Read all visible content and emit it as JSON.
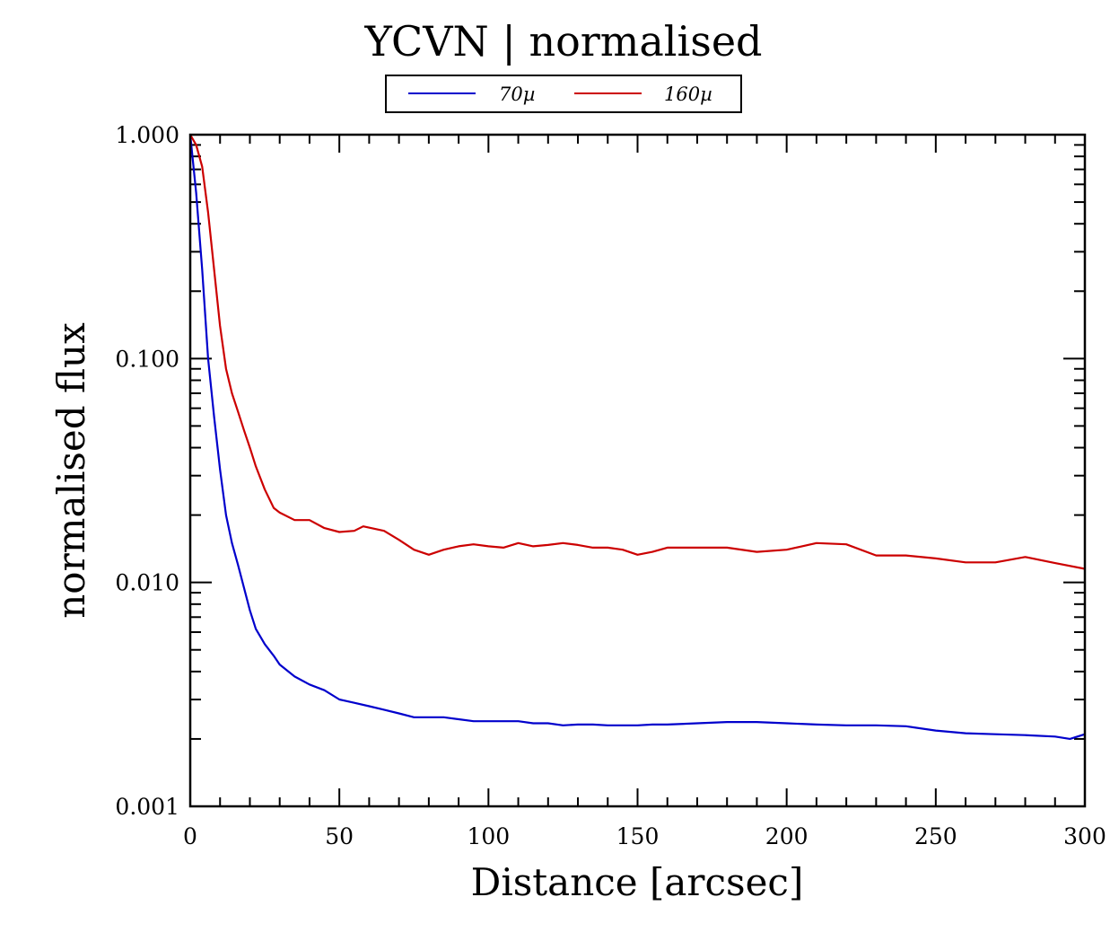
{
  "chart_data": {
    "type": "line",
    "title": "YCVN | normalised",
    "xlabel": "Distance [arcsec]",
    "ylabel": "normalised flux",
    "xlim": [
      0,
      300
    ],
    "ylim": [
      0.001,
      1.0
    ],
    "yscale": "log",
    "xticks": [
      0,
      50,
      100,
      150,
      200,
      250,
      300
    ],
    "xtick_labels": [
      "0",
      "50",
      "100",
      "150",
      "200",
      "250",
      "300"
    ],
    "yticks": [
      0.001,
      0.01,
      0.1,
      1.0
    ],
    "ytick_labels": [
      "0.001",
      "0.010",
      "0.100",
      "1.000"
    ],
    "legend_position": "top-center",
    "series": [
      {
        "name": "70µ",
        "color": "#0000cc",
        "x": [
          0,
          2,
          4,
          6,
          8,
          10,
          12,
          14,
          16,
          18,
          20,
          22,
          25,
          28,
          30,
          35,
          40,
          45,
          50,
          55,
          60,
          65,
          70,
          75,
          80,
          85,
          90,
          95,
          100,
          105,
          110,
          115,
          120,
          125,
          130,
          135,
          140,
          145,
          150,
          155,
          160,
          170,
          180,
          190,
          200,
          210,
          220,
          230,
          240,
          250,
          260,
          270,
          280,
          290,
          295,
          300
        ],
        "y": [
          1.0,
          0.55,
          0.25,
          0.1,
          0.055,
          0.032,
          0.02,
          0.015,
          0.012,
          0.0095,
          0.0075,
          0.0062,
          0.0053,
          0.0047,
          0.0043,
          0.0038,
          0.0035,
          0.0033,
          0.003,
          0.0029,
          0.0028,
          0.0027,
          0.0026,
          0.0025,
          0.0025,
          0.0025,
          0.00245,
          0.0024,
          0.0024,
          0.0024,
          0.0024,
          0.00235,
          0.00235,
          0.0023,
          0.00232,
          0.00232,
          0.0023,
          0.0023,
          0.0023,
          0.00232,
          0.00232,
          0.00235,
          0.00238,
          0.00238,
          0.00235,
          0.00232,
          0.0023,
          0.0023,
          0.00228,
          0.00218,
          0.00212,
          0.0021,
          0.00208,
          0.00205,
          0.002,
          0.0021
        ]
      },
      {
        "name": "160µ",
        "color": "#cc0000",
        "x": [
          0,
          2,
          4,
          6,
          8,
          10,
          12,
          14,
          16,
          18,
          20,
          22,
          25,
          28,
          30,
          35,
          40,
          45,
          50,
          55,
          58,
          65,
          70,
          75,
          80,
          85,
          90,
          95,
          100,
          105,
          110,
          115,
          120,
          125,
          130,
          135,
          140,
          145,
          150,
          155,
          160,
          170,
          180,
          190,
          200,
          210,
          220,
          230,
          240,
          250,
          260,
          270,
          280,
          290,
          300
        ],
        "y": [
          1.0,
          0.9,
          0.72,
          0.45,
          0.25,
          0.14,
          0.09,
          0.07,
          0.058,
          0.048,
          0.04,
          0.033,
          0.026,
          0.0215,
          0.0205,
          0.019,
          0.019,
          0.0175,
          0.0168,
          0.017,
          0.0178,
          0.017,
          0.0155,
          0.014,
          0.0133,
          0.014,
          0.0145,
          0.0148,
          0.0145,
          0.0143,
          0.015,
          0.0145,
          0.0147,
          0.015,
          0.0147,
          0.0143,
          0.0143,
          0.014,
          0.0133,
          0.0137,
          0.0143,
          0.0143,
          0.0143,
          0.0137,
          0.014,
          0.015,
          0.0148,
          0.0132,
          0.0132,
          0.0128,
          0.0123,
          0.0123,
          0.013,
          0.0122,
          0.0115
        ]
      }
    ]
  }
}
